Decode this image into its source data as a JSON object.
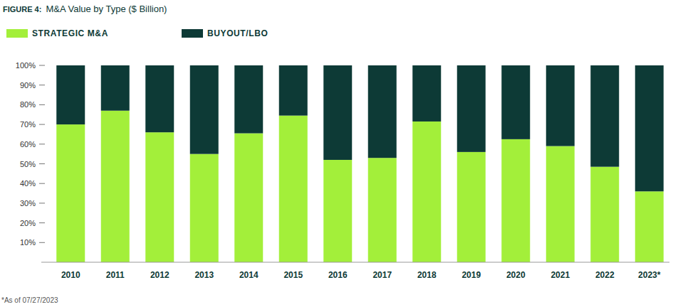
{
  "chart_data": {
    "type": "bar",
    "figure_label": "FIGURE 4:",
    "title": "M&A Value by Type ($ Billion)",
    "note": "*As of 07/27/2023",
    "stacked": true,
    "legend": "top-left",
    "categories": [
      "2010",
      "2011",
      "2012",
      "2013",
      "2014",
      "2015",
      "2016",
      "2017",
      "2018",
      "2019",
      "2020",
      "2021",
      "2022",
      "2023*"
    ],
    "series": [
      {
        "name": "STRATEGIC M&A",
        "color": "#a3ef3a",
        "values": [
          70,
          77,
          66,
          55,
          65.5,
          74.5,
          52,
          53,
          71.5,
          56,
          62.5,
          59,
          48.5,
          36
        ]
      },
      {
        "name": "BUYOUT/LBO",
        "color": "#0d3a36",
        "values": [
          30,
          23,
          34,
          45,
          34.5,
          25.5,
          48,
          47,
          28.5,
          44,
          37.5,
          41,
          51.5,
          64
        ]
      }
    ],
    "ylim": [
      0,
      100
    ],
    "yticks": [
      {
        "value": 10,
        "label": "10%"
      },
      {
        "value": 20,
        "label": "20%"
      },
      {
        "value": 30,
        "label": "30%"
      },
      {
        "value": 40,
        "label": "40%"
      },
      {
        "value": 50,
        "label": "50%"
      },
      {
        "value": 60,
        "label": "60%"
      },
      {
        "value": 70,
        "label": "70%"
      },
      {
        "value": 80,
        "label": "80%"
      },
      {
        "value": 90,
        "label": "90%"
      },
      {
        "value": 100,
        "label": "100%"
      }
    ],
    "grid": false
  }
}
